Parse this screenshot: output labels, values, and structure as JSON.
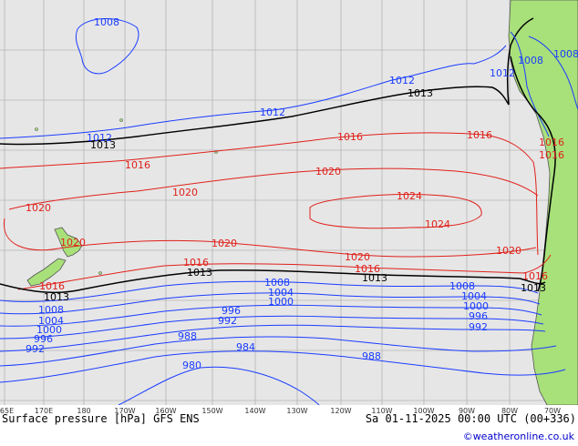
{
  "map": {
    "colors": {
      "ocean": "#e6e6e6",
      "land": "#a8e07a",
      "grid": "#b4b4b4",
      "isobar_low": "#1a3cff",
      "isobar_mid": "#000000",
      "isobar_high": "#e0201a",
      "coast": "#555555"
    },
    "longitude_ticks": [
      "165E",
      "170E",
      "180",
      "170W",
      "160W",
      "150W",
      "140W",
      "130W",
      "120W",
      "110W",
      "100W",
      "90W",
      "80W",
      "70W"
    ],
    "isobar_labels": [
      {
        "id": "l1008-nw",
        "text": "1008",
        "color": "blue"
      },
      {
        "id": "l1012-n",
        "text": "1012",
        "color": "blue"
      },
      {
        "id": "l1012-mid",
        "text": "1012",
        "color": "blue"
      },
      {
        "id": "l1012-w",
        "text": "1012",
        "color": "blue"
      },
      {
        "id": "l1012-ne",
        "text": "1012",
        "color": "blue"
      },
      {
        "id": "l1008-ne1",
        "text": "1008",
        "color": "blue"
      },
      {
        "id": "l1008-ne2",
        "text": "1008",
        "color": "blue"
      },
      {
        "id": "l1013-n",
        "text": "1013",
        "color": "black"
      },
      {
        "id": "l1013-w",
        "text": "1013",
        "color": "black"
      },
      {
        "id": "l1016-a",
        "text": "1016",
        "color": "red"
      },
      {
        "id": "l1016-b",
        "text": "1016",
        "color": "red"
      },
      {
        "id": "l1016-c",
        "text": "1016",
        "color": "red"
      },
      {
        "id": "l1016-d",
        "text": "1016",
        "color": "red"
      },
      {
        "id": "l1016-e",
        "text": "1016",
        "color": "red"
      },
      {
        "id": "l1020-a",
        "text": "1020",
        "color": "red"
      },
      {
        "id": "l1020-b",
        "text": "1020",
        "color": "red"
      },
      {
        "id": "l1020-c",
        "text": "1020",
        "color": "red"
      },
      {
        "id": "l1024-a",
        "text": "1024",
        "color": "red"
      },
      {
        "id": "l1024-b",
        "text": "1024",
        "color": "red"
      },
      {
        "id": "l1020-nz",
        "text": "1020",
        "color": "red"
      },
      {
        "id": "l1020-d",
        "text": "1020",
        "color": "red"
      },
      {
        "id": "l1020-e",
        "text": "1020",
        "color": "red"
      },
      {
        "id": "l1020-f",
        "text": "1020",
        "color": "red"
      },
      {
        "id": "l1016-f",
        "text": "1016",
        "color": "red"
      },
      {
        "id": "l1016-g",
        "text": "1016",
        "color": "red"
      },
      {
        "id": "l1016-h",
        "text": "1016",
        "color": "red"
      },
      {
        "id": "l1016-i",
        "text": "1016",
        "color": "red"
      },
      {
        "id": "l1013-s1",
        "text": "1013",
        "color": "black"
      },
      {
        "id": "l1013-s2",
        "text": "1013",
        "color": "black"
      },
      {
        "id": "l1013-s3",
        "text": "1013",
        "color": "black"
      },
      {
        "id": "l1013-s4",
        "text": "1013",
        "color": "black"
      },
      {
        "id": "l1008-s1",
        "text": "1008",
        "color": "blue"
      },
      {
        "id": "l1008-s2",
        "text": "1008",
        "color": "blue"
      },
      {
        "id": "l1008-s3",
        "text": "1008",
        "color": "blue"
      },
      {
        "id": "l1004-s1",
        "text": "1004",
        "color": "blue"
      },
      {
        "id": "l1004-s2",
        "text": "1004",
        "color": "blue"
      },
      {
        "id": "l1004-s3",
        "text": "1004",
        "color": "blue"
      },
      {
        "id": "l1000-s1",
        "text": "1000",
        "color": "blue"
      },
      {
        "id": "l1000-s2",
        "text": "1000",
        "color": "blue"
      },
      {
        "id": "l1000-s3",
        "text": "1000",
        "color": "blue"
      },
      {
        "id": "l996-s1",
        "text": "996",
        "color": "blue"
      },
      {
        "id": "l996-s2",
        "text": "996",
        "color": "blue"
      },
      {
        "id": "l996-s3",
        "text": "996",
        "color": "blue"
      },
      {
        "id": "l992-s1",
        "text": "992",
        "color": "blue"
      },
      {
        "id": "l992-s2",
        "text": "992",
        "color": "blue"
      },
      {
        "id": "l992-s3",
        "text": "992",
        "color": "blue"
      },
      {
        "id": "l988-s1",
        "text": "988",
        "color": "blue"
      },
      {
        "id": "l988-s2",
        "text": "988",
        "color": "blue"
      },
      {
        "id": "l984-s1",
        "text": "984",
        "color": "blue"
      },
      {
        "id": "l980-s1",
        "text": "980",
        "color": "blue"
      }
    ]
  },
  "footer": {
    "title": "Surface pressure [hPa] GFS ENS",
    "valid": "Sa 01-11-2025 00:00 UTC (00+336)",
    "credit": "©weatheronline.co.uk"
  }
}
